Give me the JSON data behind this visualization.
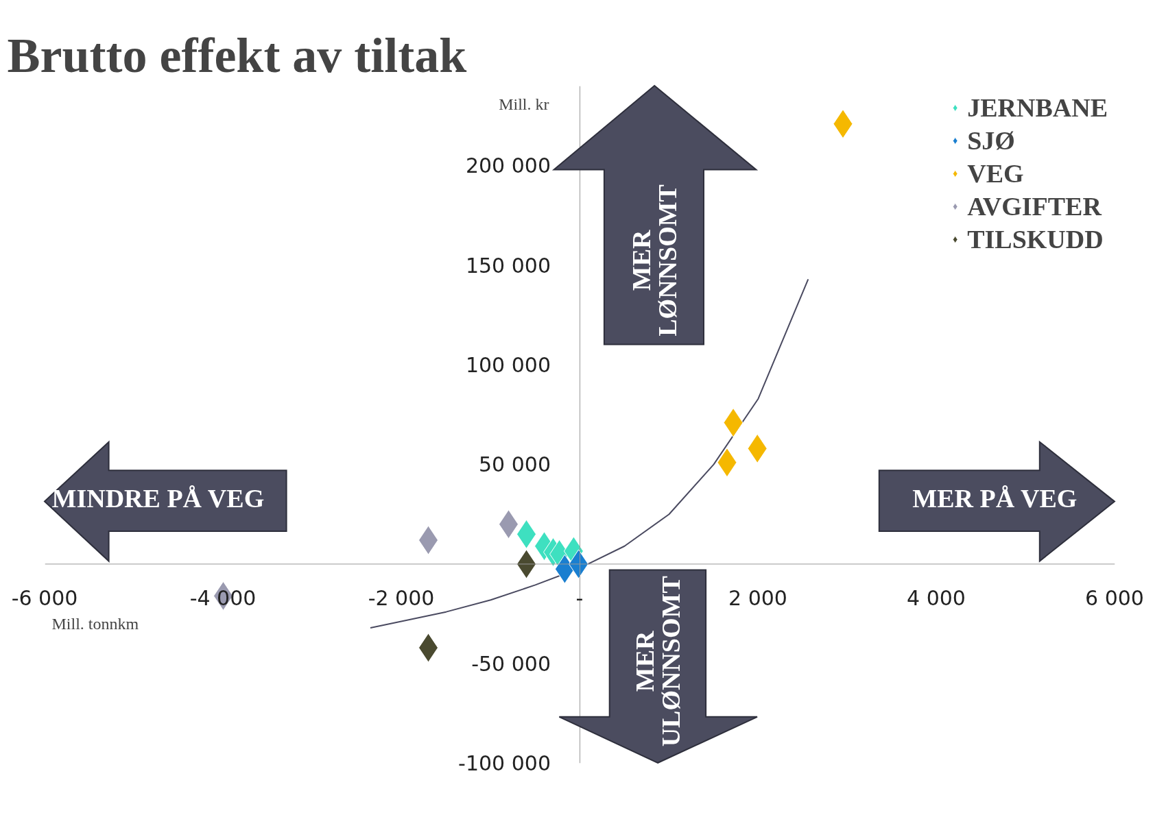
{
  "chart_data": {
    "type": "scatter",
    "title": "Brutto effekt av tiltak",
    "xlabel": "Mill. tonnkm",
    "ylabel": "Mill. kr",
    "marker": "diamond",
    "legend": "top right",
    "grid": false,
    "xlim": [
      -6000,
      6000
    ],
    "ylim": [
      -100000,
      240000
    ],
    "xticks": [
      {
        "value": -6000,
        "label": "-6 000"
      },
      {
        "value": -4000,
        "label": "-4 000"
      },
      {
        "value": -2000,
        "label": "-2 000"
      },
      {
        "value": 0,
        "label": "-"
      },
      {
        "value": 2000,
        "label": "2 000"
      },
      {
        "value": 4000,
        "label": "4 000"
      },
      {
        "value": 6000,
        "label": "6 000"
      }
    ],
    "yticks": [
      {
        "value": -100000,
        "label": "-100 000"
      },
      {
        "value": -50000,
        "label": "-50 000"
      },
      {
        "value": 0,
        "label": null
      },
      {
        "value": 50000,
        "label": "50 000"
      },
      {
        "value": 100000,
        "label": "100 000"
      },
      {
        "value": 150000,
        "label": "150 000"
      },
      {
        "value": 200000,
        "label": "200 000"
      }
    ],
    "series": [
      {
        "type": "line",
        "marker": "none",
        "color": "#4a4a60",
        "x": [
          -2350,
          -1500,
          -1000,
          -500,
          0,
          500,
          1000,
          1500,
          2000,
          2560
        ],
        "values": [
          -32000,
          -24000,
          -18000,
          -10500,
          -2000,
          9000,
          25000,
          50000,
          83000,
          143000
        ]
      },
      {
        "name": "JERNBANE",
        "color": "#3ee0c0",
        "x": [
          -600,
          -400,
          -300,
          -230,
          -70
        ],
        "values": [
          15000,
          9000,
          6000,
          5000,
          6500
        ]
      },
      {
        "name": "SJØ",
        "color": "#1a7fd0",
        "x": [
          -170,
          -15
        ],
        "values": [
          -2500,
          0
        ]
      },
      {
        "name": "VEG",
        "color": "#f5b800",
        "x": [
          1650,
          1720,
          1990,
          2950
        ],
        "values": [
          51000,
          71000,
          58000,
          221000
        ]
      },
      {
        "name": "AVGIFTER",
        "color": "#9a9ab0",
        "x": [
          -4000,
          -1700,
          -800
        ],
        "values": [
          -16000,
          12000,
          20000
        ]
      },
      {
        "name": "TILSKUDD",
        "color": "#4a4a30",
        "x": [
          -1700,
          -600
        ],
        "values": [
          -42000,
          0
        ]
      }
    ],
    "annotations": [
      "MINDRE PÅ VEG",
      "MER PÅ VEG",
      "MER\nLØNNSOMT",
      "MER\nULØNNSOMT"
    ]
  }
}
